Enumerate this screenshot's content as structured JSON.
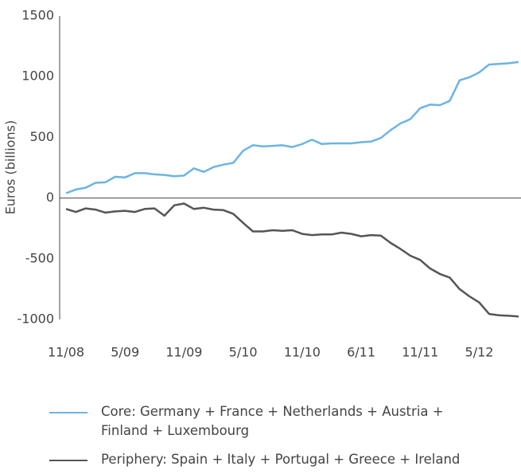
{
  "chart_data": {
    "type": "line",
    "y_label": "Euros (billions)",
    "categories": [
      "11/08",
      null,
      null,
      null,
      null,
      null,
      "5/09",
      null,
      null,
      null,
      null,
      null,
      "11/09",
      null,
      null,
      null,
      null,
      null,
      "5/10",
      null,
      null,
      null,
      null,
      null,
      "11/10",
      null,
      null,
      null,
      null,
      null,
      "6/11",
      null,
      null,
      null,
      null,
      null,
      "11/11",
      null,
      null,
      null,
      null,
      null,
      "5/12",
      null,
      null,
      null,
      null
    ],
    "series": [
      {
        "name": "Core: Germany + France + Netherlands + Austria + Finland + Luxembourg",
        "color": "#6cb4e4",
        "values": [
          40,
          70,
          85,
          125,
          130,
          175,
          170,
          205,
          205,
          195,
          190,
          180,
          185,
          245,
          215,
          255,
          275,
          290,
          390,
          435,
          425,
          430,
          435,
          420,
          445,
          480,
          445,
          450,
          450,
          450,
          460,
          465,
          495,
          560,
          615,
          650,
          740,
          770,
          765,
          800,
          970,
          995,
          1035,
          1100,
          1105,
          1110,
          1120
        ]
      },
      {
        "name": "Periphery: Spain + Italy + Portugal + Greece + Ireland",
        "color": "#555555",
        "values": [
          -90,
          -115,
          -85,
          -95,
          -120,
          -110,
          -105,
          -115,
          -90,
          -85,
          -145,
          -60,
          -45,
          -90,
          -80,
          -95,
          -100,
          -130,
          -205,
          -275,
          -275,
          -265,
          -270,
          -265,
          -295,
          -305,
          -300,
          -300,
          -285,
          -295,
          -315,
          -305,
          -310,
          -370,
          -420,
          -475,
          -510,
          -580,
          -625,
          -655,
          -750,
          -810,
          -860,
          -955,
          -965,
          -970,
          -975
        ]
      }
    ],
    "ylim": [
      -1000,
      1500
    ],
    "yticks": [
      -1000,
      -500,
      0,
      500,
      1000,
      1500
    ]
  }
}
